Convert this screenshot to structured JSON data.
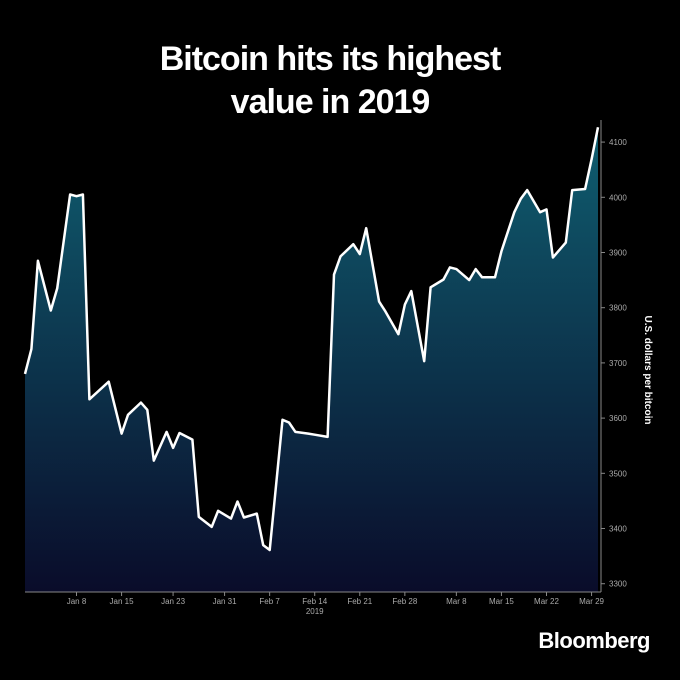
{
  "chart_data": {
    "type": "area",
    "title": [
      "Bitcoin hits its highest",
      "value in 2019"
    ],
    "ylabel": "U.S. dollars per bitcoin",
    "xlabel": "2019",
    "source": "Bloomberg",
    "x": [
      0,
      1,
      2,
      4,
      5,
      7,
      8,
      9,
      10,
      13,
      15,
      16,
      18,
      19,
      20,
      22,
      23,
      24,
      26,
      27,
      29,
      30,
      32,
      33,
      34,
      36,
      37,
      38,
      40,
      41,
      42,
      44,
      45,
      47,
      48,
      49,
      51,
      52,
      53,
      55,
      56,
      58,
      59,
      60,
      62,
      63,
      65,
      66,
      67,
      69,
      70,
      71,
      73,
      74,
      76,
      77,
      78,
      80,
      81,
      82,
      84,
      85,
      87,
      88,
      89
    ],
    "series": [
      {
        "name": "Bitcoin",
        "color": "#ffffff",
        "values": [
          3680,
          3725,
          3885,
          3795,
          3835,
          4005,
          4002,
          4005,
          3634,
          3666,
          3572,
          3606,
          3628,
          3615,
          3523,
          3575,
          3546,
          3573,
          3561,
          3421,
          3403,
          3432,
          3418,
          3449,
          3420,
          3427,
          3370,
          3361,
          3597,
          3592,
          3575,
          3572,
          3570,
          3566,
          3860,
          3893,
          3915,
          3897,
          3944,
          3811,
          3793,
          3752,
          3806,
          3830,
          3703,
          3837,
          3851,
          3873,
          3870,
          3850,
          3870,
          3855,
          3855,
          3902,
          3973,
          3997,
          4013,
          3973,
          3978,
          3891,
          3918,
          4013,
          4015,
          4069,
          4127
        ]
      }
    ],
    "xlim": [
      0,
      89
    ],
    "xticks": [
      {
        "value": 8,
        "label": "Jan 8"
      },
      {
        "value": 15,
        "label": "Jan 15"
      },
      {
        "value": 23,
        "label": "Jan 23"
      },
      {
        "value": 31,
        "label": "Jan 31"
      },
      {
        "value": 38,
        "label": "Feb 7"
      },
      {
        "value": 45,
        "label": "Feb 14"
      },
      {
        "value": 52,
        "label": "Feb 21"
      },
      {
        "value": 59,
        "label": "Feb 28"
      },
      {
        "value": 67,
        "label": "Mar 8"
      },
      {
        "value": 74,
        "label": "Mar 15"
      },
      {
        "value": 81,
        "label": "Mar 22"
      },
      {
        "value": 88,
        "label": "Mar 29"
      }
    ],
    "ylim": [
      3285,
      4140
    ],
    "yticks": [
      3300,
      3400,
      3500,
      3600,
      3700,
      3800,
      3900,
      4000,
      4100
    ],
    "fill_gradient": [
      "#0f5e70",
      "#0a0c2a"
    ]
  }
}
